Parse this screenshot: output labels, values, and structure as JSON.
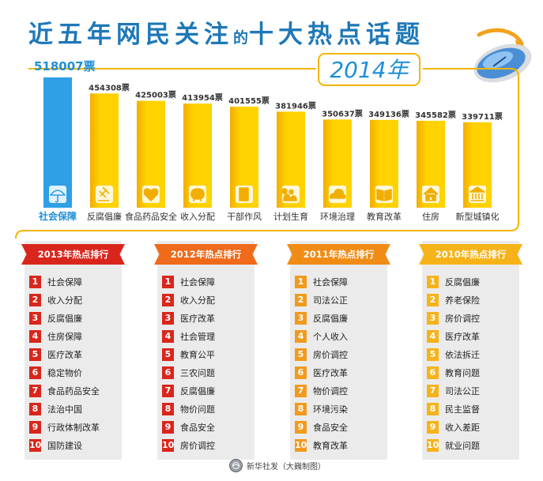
{
  "title": {
    "part1": "近五年网民关注",
    "part2": "的",
    "part3": "十大热点话题"
  },
  "chart_data": {
    "type": "bar",
    "year_label": "2014年",
    "categories": [
      "社会保障",
      "反腐倡廉",
      "食品药品安全",
      "收入分配",
      "干部作风",
      "计划生育",
      "环境治理",
      "教育改革",
      "住房",
      "新型城镇化"
    ],
    "values": [
      518007,
      454308,
      425003,
      413954,
      401555,
      381946,
      350637,
      349136,
      345582,
      339711
    ],
    "value_labels": [
      "518007票",
      "454308票",
      "425003票",
      "413954票",
      "401555票",
      "381946票",
      "350637票",
      "349136票",
      "345582票",
      "339711票"
    ],
    "icons": [
      "umbrella-icon",
      "gavel-icon",
      "heart-medicine-icon",
      "piggy-bank-icon",
      "document-icon",
      "family-icon",
      "cloud-icon",
      "book-icon",
      "house-icon",
      "bank-building-icon"
    ],
    "colors": {
      "highlight": "#2f9fe6",
      "bar": "#ffd200",
      "bar_dark": "#f2ae00",
      "line": "#f5b400",
      "highlight_text": "#1f8fd8"
    }
  },
  "rankings": [
    {
      "title": "2013年热点排行",
      "color": "#d9261c",
      "num_color": "#d9261c",
      "items": [
        "社会保障",
        "收入分配",
        "反腐倡廉",
        "住房保障",
        "医疗改革",
        "稳定物价",
        "食品药品安全",
        "法治中国",
        "行政体制改革",
        "国防建设"
      ]
    },
    {
      "title": "2012年热点排行",
      "color": "#ef6a1a",
      "num_color": "#d9261c",
      "items": [
        "社会保障",
        "收入分配",
        "医疗改革",
        "社会管理",
        "教育公平",
        "三农问题",
        "反腐倡廉",
        "物价问题",
        "食品安全",
        "房价调控"
      ]
    },
    {
      "title": "2011年热点排行",
      "color": "#f08c16",
      "num_color": "#f29a1e",
      "items": [
        "社会保障",
        "司法公正",
        "反腐倡廉",
        "个人收入",
        "房价调控",
        "医疗改革",
        "物价调控",
        "环境污染",
        "食品安全",
        "教育改革"
      ]
    },
    {
      "title": "2010年热点排行",
      "color": "#f6b319",
      "num_color": "#f6b319",
      "items": [
        "反腐倡廉",
        "养老保险",
        "房价调控",
        "医疗改革",
        "依法拆迁",
        "教育问题",
        "司法公正",
        "民主监督",
        "收入差距",
        "就业问题"
      ]
    }
  ],
  "footer": {
    "credit": "新华社发（大巍制图）"
  }
}
